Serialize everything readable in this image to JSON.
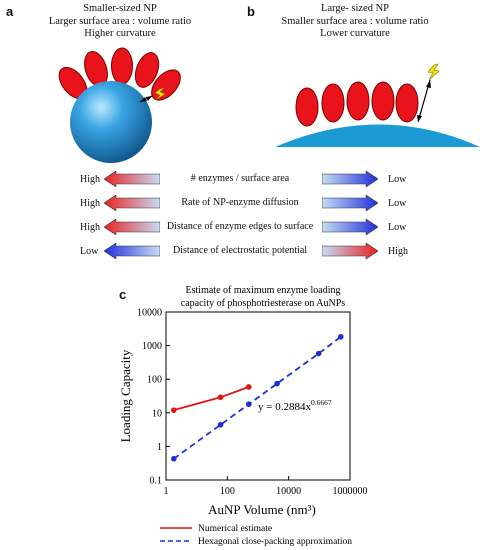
{
  "panel_a": {
    "letter": "a",
    "caption_lines": [
      "Smaller-sized NP",
      "Larger surface area : volume ratio",
      "Higher curvature"
    ]
  },
  "panel_b": {
    "letter": "b",
    "caption_lines": [
      "Large- sized NP",
      "Smaller surface area : volume ratio",
      "Lower curvature"
    ]
  },
  "comparison_rows": [
    {
      "left": "High",
      "label": "# enzymes / surface area",
      "right": "Low"
    },
    {
      "left": "High",
      "label": "Rate of NP-enzyme diffusion",
      "right": "Low"
    },
    {
      "left": "High",
      "label": "Distance of enzyme edges to surface",
      "right": "Low"
    },
    {
      "left": "Low",
      "label": "Distance of electrostatic potential",
      "right": "High"
    }
  ],
  "panel_c": {
    "letter": "c",
    "title_lines": [
      "Estimate of maximum enzyme loading",
      "capacity of phosphotriesterase on AuNPs"
    ],
    "equation_base": "y = 0.2884x",
    "equation_exp": "0.6667"
  },
  "colors": {
    "enzyme_red": "#e8131b",
    "sphere_blue": "#1f8fd0",
    "surface_blue": "#1b9ad6",
    "lightning_yellow": "#f2e200",
    "arrow_red": "#e82020",
    "arrow_blue": "#1f2fd8"
  },
  "chart_data": {
    "type": "scatter",
    "title": "Estimate of maximum enzyme loading capacity of phosphotriesterase on AuNPs",
    "xlabel": "AuNP Volume (nm³)",
    "ylabel": "Loading Capacity",
    "x_scale": "log",
    "y_scale": "log",
    "xlim": [
      1,
      1000000
    ],
    "ylim": [
      0.1,
      10000
    ],
    "x_ticks": [
      "1",
      "100",
      "10000",
      "1000000"
    ],
    "y_ticks": [
      "0.1",
      "1",
      "10",
      "100",
      "1000",
      "10000"
    ],
    "series": [
      {
        "name": "Numerical estimate",
        "color": "#e01414",
        "style": "solid",
        "x": [
          1.8,
          60,
          500
        ],
        "y": [
          12,
          29,
          59
        ]
      },
      {
        "name": "Hexagonal close-packing approximation",
        "color": "#1c2fd6",
        "style": "dashed",
        "x": [
          1.8,
          60,
          500,
          4200,
          95000,
          500000
        ],
        "y": [
          0.43,
          4.4,
          18,
          74,
          580,
          1830
        ]
      }
    ],
    "legend_position": "bottom-outside"
  }
}
